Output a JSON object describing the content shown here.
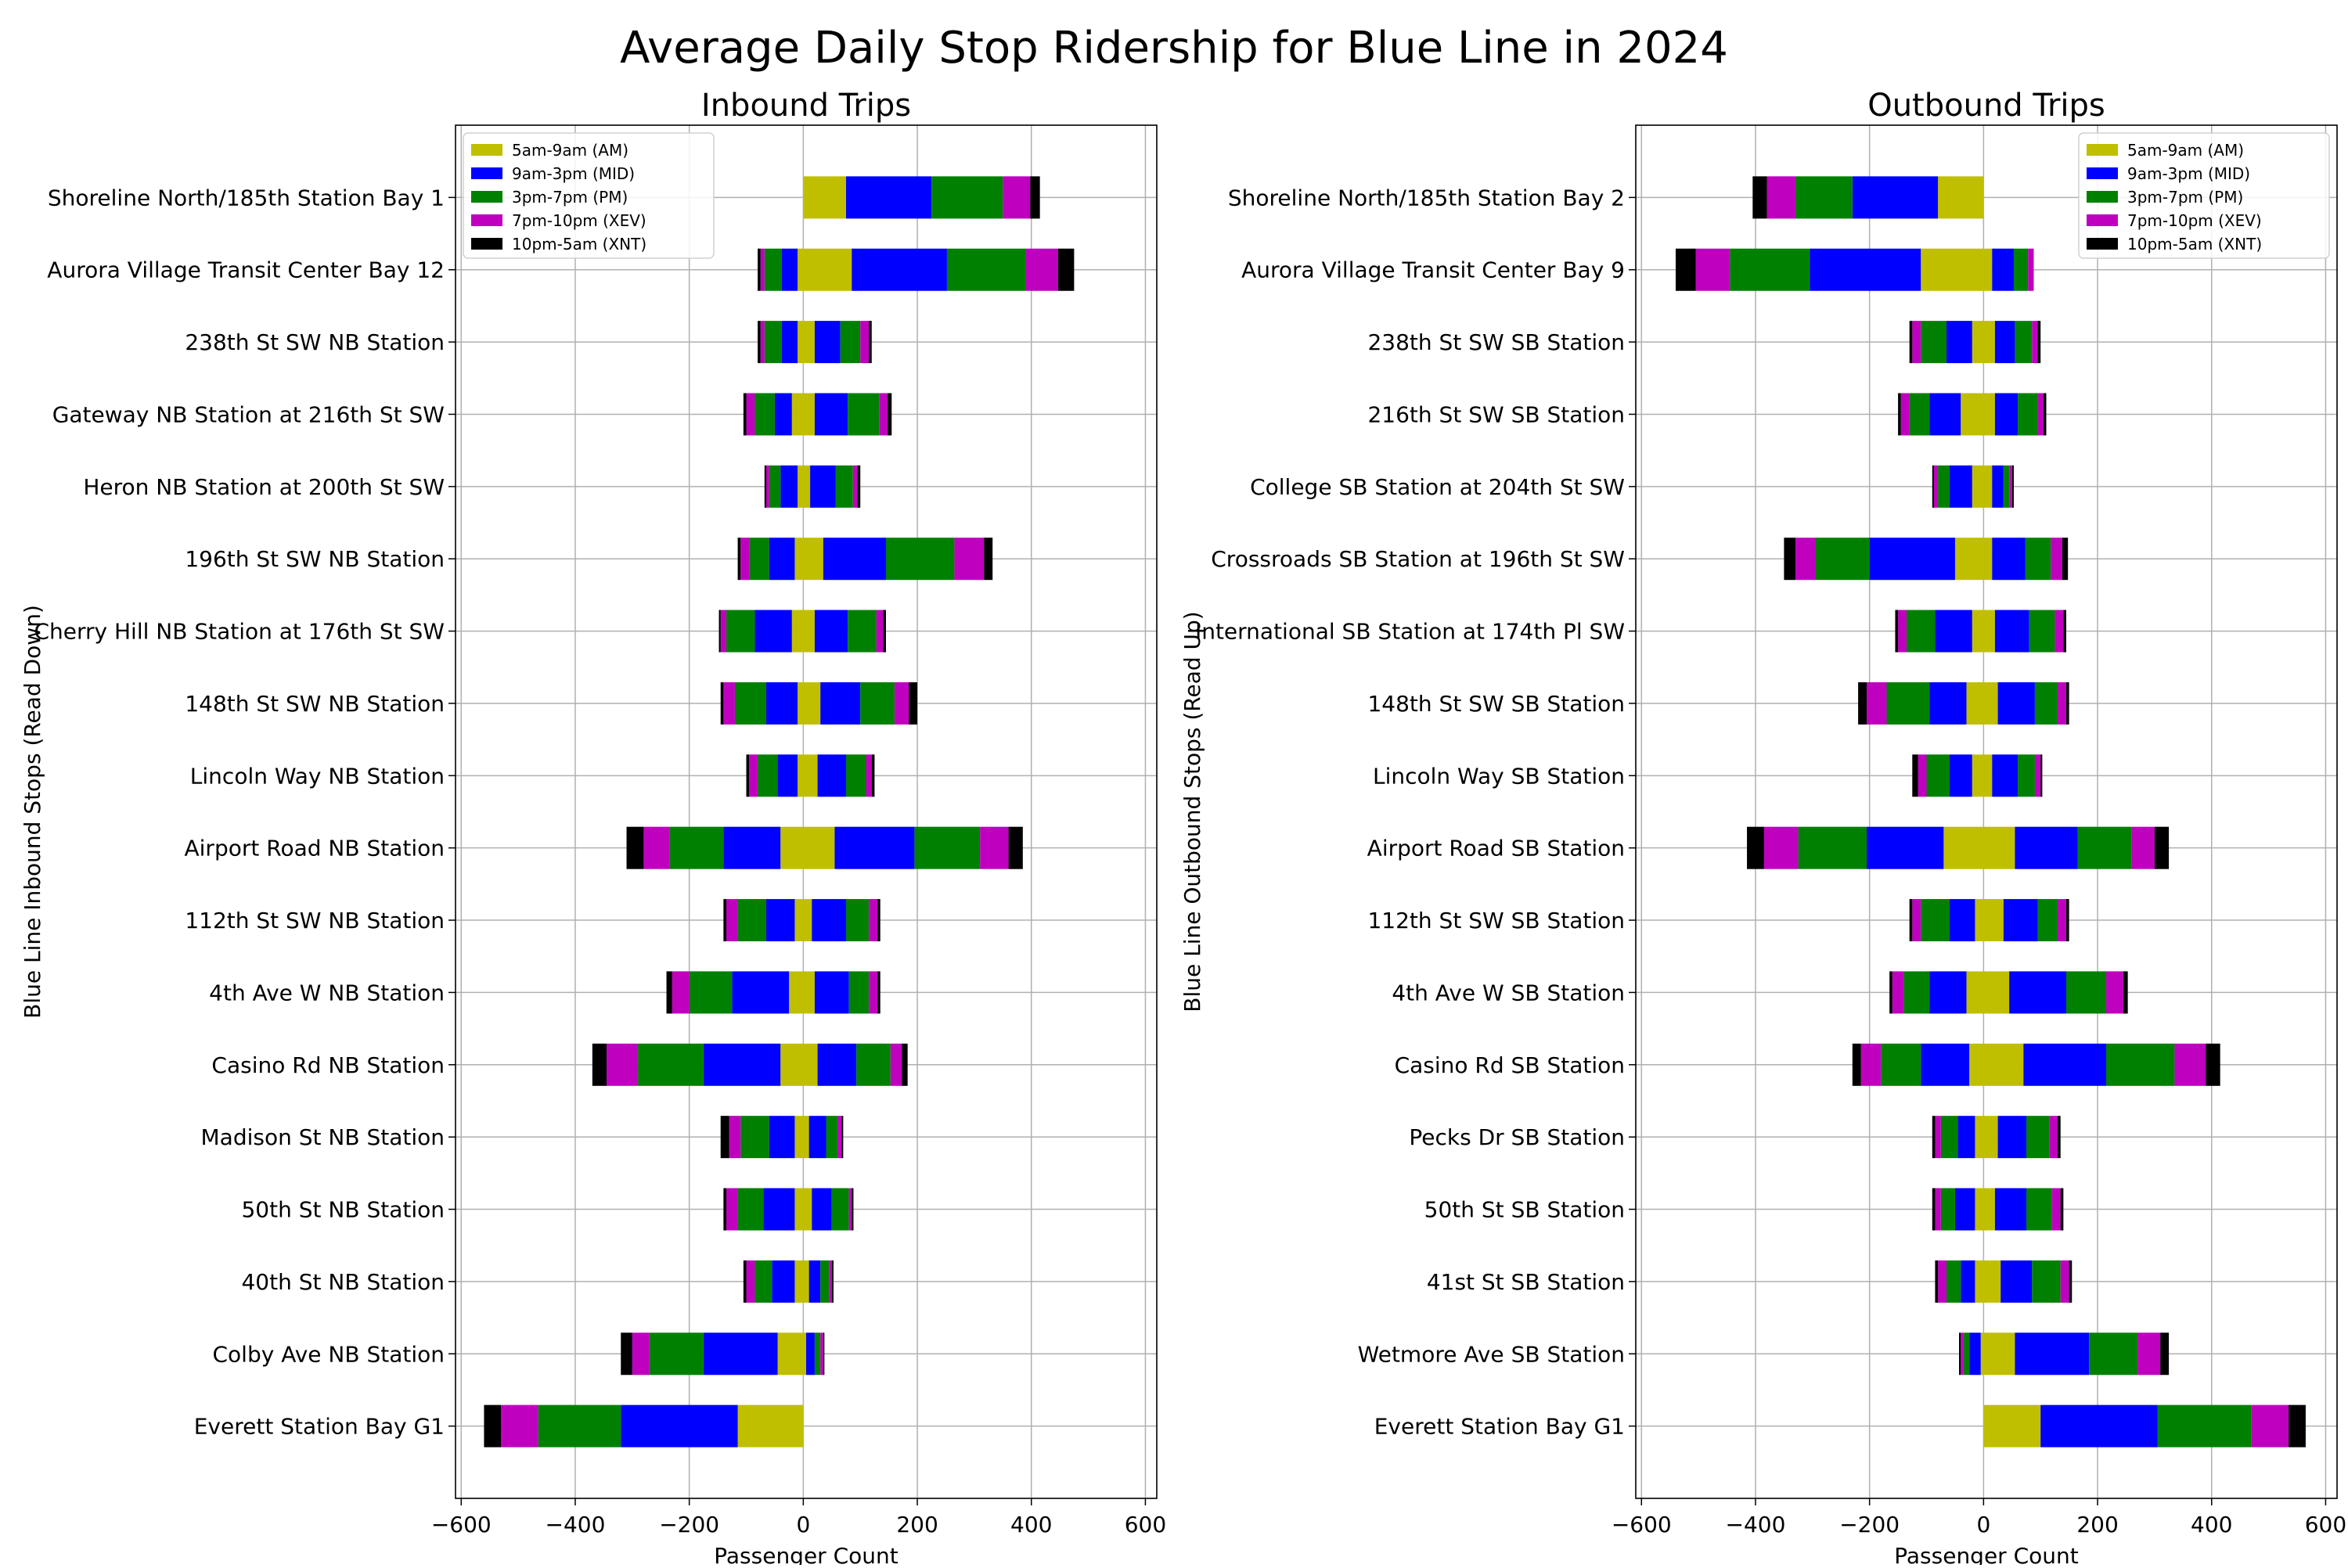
{
  "chart_data": {
    "type": "bar",
    "title": "Average Daily Stop Ridership for Blue Line in 2024",
    "colors": {
      "AM": "#bfbf00",
      "MID": "#0000ff",
      "PM": "#008000",
      "XEV": "#bf00bf",
      "XNT": "#000000",
      "grid": "#b0b0b0"
    },
    "legend": [
      {
        "key": "AM",
        "label": "5am-9am (AM)"
      },
      {
        "key": "MID",
        "label": "9am-3pm (MID)"
      },
      {
        "key": "PM",
        "label": "3pm-7pm (PM)"
      },
      {
        "key": "XEV",
        "label": "7pm-10pm (XEV)"
      },
      {
        "key": "XNT",
        "label": "10pm-5am (XNT)"
      }
    ],
    "segment_order": [
      "AM",
      "MID",
      "PM",
      "XEV",
      "XNT"
    ],
    "panels": [
      {
        "title": "Inbound Trips",
        "xlabel": "Passenger Count",
        "ylabel": "Blue Line Inbound Stops (Read Down)",
        "xlim": [
          -610,
          620
        ],
        "xticks": [
          -600,
          -400,
          -200,
          0,
          200,
          400,
          600
        ],
        "xtick_labels": [
          "−600",
          "−400",
          "−200",
          "0",
          "200",
          "400",
          "600"
        ],
        "legend_position": "upper-left",
        "grid": true,
        "series_negative": "boarding (left)",
        "stops": [
          {
            "name": "Shoreline North/185th Station Bay 1",
            "pos": [
              0,
              0,
              0,
              0,
              0
            ],
            "neg": [
              0,
              0,
              0,
              0,
              0
            ],
            "pos_vals": [
              75,
              150,
              125,
              48,
              17
            ],
            "neg_vals": [
              0,
              0,
              0,
              0,
              0
            ]
          },
          {
            "name": "Aurora Village Transit Center Bay 12",
            "pos_vals": [
              85,
              167,
              138,
              57,
              28
            ],
            "neg_vals": [
              10,
              28,
              30,
              7,
              5
            ]
          },
          {
            "name": "238th St SW NB Station",
            "pos_vals": [
              20,
              45,
              35,
              15,
              5
            ],
            "neg_vals": [
              10,
              28,
              30,
              7,
              5
            ]
          },
          {
            "name": "Gateway NB Station at 216th St SW",
            "pos_vals": [
              20,
              58,
              55,
              15,
              7
            ],
            "neg_vals": [
              20,
              30,
              35,
              15,
              5
            ]
          },
          {
            "name": "Heron NB Station at 200th St SW",
            "pos_vals": [
              12,
              45,
              30,
              8,
              5
            ],
            "neg_vals": [
              10,
              30,
              20,
              5,
              3
            ]
          },
          {
            "name": "196th St SW NB Station",
            "pos_vals": [
              35,
              110,
              120,
              52,
              15
            ],
            "neg_vals": [
              15,
              45,
              35,
              15,
              5
            ]
          },
          {
            "name": "Cherry Hill NB Station at 176th St SW",
            "pos_vals": [
              20,
              58,
              50,
              12,
              5
            ],
            "neg_vals": [
              20,
              65,
              50,
              10,
              3
            ]
          },
          {
            "name": "148th St SW NB Station",
            "pos_vals": [
              30,
              70,
              60,
              25,
              15
            ],
            "neg_vals": [
              10,
              55,
              55,
              20,
              5
            ]
          },
          {
            "name": "Lincoln Way NB Station",
            "pos_vals": [
              25,
              50,
              35,
              10,
              5
            ],
            "neg_vals": [
              10,
              35,
              35,
              15,
              5
            ]
          },
          {
            "name": "Airport Road NB Station",
            "pos_vals": [
              55,
              140,
              115,
              50,
              25
            ],
            "neg_vals": [
              40,
              100,
              95,
              45,
              30
            ]
          },
          {
            "name": "112th St SW NB Station",
            "pos_vals": [
              15,
              60,
              40,
              15,
              5
            ],
            "neg_vals": [
              15,
              50,
              50,
              20,
              5
            ]
          },
          {
            "name": "4th Ave W NB Station",
            "pos_vals": [
              20,
              60,
              35,
              15,
              5
            ],
            "neg_vals": [
              25,
              100,
              75,
              30,
              10
            ]
          },
          {
            "name": "Casino Rd NB Station",
            "pos_vals": [
              25,
              68,
              60,
              20,
              10
            ],
            "neg_vals": [
              40,
              135,
              115,
              55,
              25
            ]
          },
          {
            "name": "Madison St NB Station",
            "pos_vals": [
              10,
              30,
              20,
              7,
              3
            ],
            "neg_vals": [
              15,
              45,
              50,
              20,
              15
            ]
          },
          {
            "name": "50th St NB Station",
            "pos_vals": [
              15,
              35,
              30,
              5,
              3
            ],
            "neg_vals": [
              15,
              55,
              45,
              20,
              5
            ]
          },
          {
            "name": "40th St NB Station",
            "pos_vals": [
              10,
              20,
              15,
              5,
              3
            ],
            "neg_vals": [
              15,
              40,
              30,
              15,
              5
            ]
          },
          {
            "name": "Colby Ave NB Station",
            "pos_vals": [
              5,
              15,
              10,
              5,
              2
            ],
            "neg_vals": [
              45,
              130,
              95,
              30,
              20
            ]
          },
          {
            "name": "Everett Station Bay G1",
            "pos_vals": [
              0,
              0,
              0,
              0,
              0
            ],
            "neg_vals": [
              115,
              205,
              145,
              65,
              30
            ]
          }
        ]
      },
      {
        "title": "Outbound Trips",
        "xlabel": "Passenger Count",
        "ylabel": "Blue Line Outbound Stops (Read Up)",
        "xlim": [
          -610,
          620
        ],
        "xticks": [
          -600,
          -400,
          -200,
          0,
          200,
          400,
          600
        ],
        "xtick_labels": [
          "−600",
          "−400",
          "−200",
          "0",
          "200",
          "400",
          "600"
        ],
        "legend_position": "upper-right",
        "grid": true,
        "stops": [
          {
            "name": "Shoreline North/185th Station Bay 2",
            "pos_vals": [
              0,
              0,
              0,
              0,
              0
            ],
            "neg_vals": [
              80,
              150,
              100,
              50,
              25
            ]
          },
          {
            "name": "Aurora Village Transit Center Bay 9",
            "pos_vals": [
              15,
              38,
              25,
              10,
              0
            ],
            "neg_vals": [
              110,
              195,
              140,
              60,
              35
            ]
          },
          {
            "name": "238th St SW SB Station",
            "pos_vals": [
              20,
              35,
              30,
              10,
              5
            ],
            "neg_vals": [
              20,
              45,
              45,
              15,
              5
            ]
          },
          {
            "name": "216th St SW SB Station",
            "pos_vals": [
              20,
              40,
              35,
              10,
              5
            ],
            "neg_vals": [
              40,
              55,
              35,
              15,
              5
            ]
          },
          {
            "name": "College SB Station at 204th St SW",
            "pos_vals": [
              15,
              20,
              10,
              5,
              3
            ],
            "neg_vals": [
              20,
              40,
              20,
              7,
              3
            ]
          },
          {
            "name": "Crossroads SB Station at 196th St SW",
            "pos_vals": [
              15,
              58,
              45,
              20,
              10
            ],
            "neg_vals": [
              50,
              150,
              95,
              35,
              20
            ]
          },
          {
            "name": "International SB Station at 174th Pl SW",
            "pos_vals": [
              20,
              60,
              45,
              15,
              5
            ],
            "neg_vals": [
              20,
              65,
              50,
              15,
              5
            ]
          },
          {
            "name": "148th St SW SB Station",
            "pos_vals": [
              25,
              65,
              40,
              15,
              5
            ],
            "neg_vals": [
              30,
              65,
              75,
              35,
              15
            ]
          },
          {
            "name": "Lincoln Way SB Station",
            "pos_vals": [
              15,
              45,
              30,
              10,
              3
            ],
            "neg_vals": [
              20,
              40,
              40,
              15,
              10
            ]
          },
          {
            "name": "Airport Road SB Station",
            "pos_vals": [
              55,
              110,
              95,
              40,
              25
            ],
            "neg_vals": [
              70,
              135,
              120,
              60,
              30
            ]
          },
          {
            "name": "112th St SW SB Station",
            "pos_vals": [
              35,
              60,
              35,
              15,
              5
            ],
            "neg_vals": [
              15,
              45,
              50,
              15,
              5
            ]
          },
          {
            "name": "4th Ave W SB Station",
            "pos_vals": [
              45,
              100,
              70,
              30,
              8
            ],
            "neg_vals": [
              30,
              65,
              45,
              20,
              5
            ]
          },
          {
            "name": "Casino Rd SB Station",
            "pos_vals": [
              70,
              145,
              120,
              55,
              25
            ],
            "neg_vals": [
              25,
              85,
              70,
              35,
              15
            ]
          },
          {
            "name": "Pecks Dr SB Station",
            "pos_vals": [
              25,
              50,
              40,
              15,
              5
            ],
            "neg_vals": [
              15,
              30,
              30,
              10,
              5
            ]
          },
          {
            "name": "50th St SB Station",
            "pos_vals": [
              20,
              55,
              45,
              15,
              5
            ],
            "neg_vals": [
              15,
              35,
              25,
              10,
              5
            ]
          },
          {
            "name": "41st St SB Station",
            "pos_vals": [
              30,
              55,
              50,
              15,
              5
            ],
            "neg_vals": [
              15,
              25,
              25,
              15,
              5
            ]
          },
          {
            "name": "Wetmore Ave SB Station",
            "pos_vals": [
              55,
              130,
              85,
              40,
              15
            ],
            "neg_vals": [
              5,
              20,
              10,
              5,
              3
            ]
          },
          {
            "name": "Everett Station Bay G1",
            "pos_vals": [
              100,
              205,
              165,
              65,
              30
            ],
            "neg_vals": [
              0,
              0,
              0,
              0,
              0
            ]
          }
        ]
      }
    ]
  }
}
